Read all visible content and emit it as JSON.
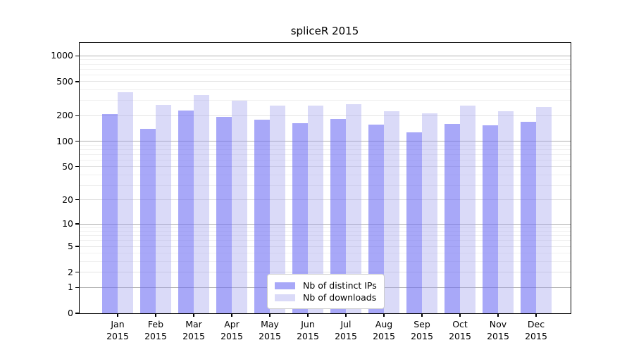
{
  "title": "spliceR 2015",
  "legend": {
    "items": [
      {
        "label": "Nb of distinct IPs"
      },
      {
        "label": "Nb of downloads"
      }
    ]
  },
  "colors": {
    "bar_dark": "rgba(110,110,243,0.6)",
    "bar_light": "rgba(162,162,238,0.4)",
    "grid_decade": "#b0b0b0",
    "grid_labeled": "#e2e2e2",
    "grid_minor": "#f0f0f0",
    "spine": "#000000",
    "text": "#000000",
    "background": "#ffffff"
  },
  "chart_data": {
    "type": "bar",
    "title": "spliceR 2015",
    "categories": [
      "Jan",
      "Feb",
      "Mar",
      "Apr",
      "May",
      "Jun",
      "Jul",
      "Aug",
      "Sep",
      "Oct",
      "Nov",
      "Dec"
    ],
    "x_tick_second_line": "2015",
    "series": [
      {
        "name": "Nb of distinct IPs",
        "color": "rgba(110,110,243,0.6)",
        "values": [
          210,
          141,
          231,
          192,
          180,
          163,
          183,
          158,
          127,
          160,
          154,
          170
        ]
      },
      {
        "name": "Nb of downloads",
        "color": "rgba(162,162,238,0.4)",
        "values": [
          378,
          266,
          350,
          297,
          263,
          262,
          272,
          224,
          214,
          262,
          225,
          250
        ]
      }
    ],
    "xlabel": "",
    "ylabel": "",
    "yscale": "log1p",
    "ylim": [
      0,
      1412
    ],
    "ylim_log_top": 3.15,
    "y_ticks": [
      0,
      1,
      2,
      5,
      10,
      20,
      50,
      100,
      200,
      500,
      1000
    ],
    "y_decade_gridlines": [
      1,
      10,
      100,
      1000
    ],
    "y_minor_gridlines": [
      3,
      4,
      6,
      7,
      8,
      9,
      30,
      40,
      60,
      70,
      80,
      90,
      300,
      400,
      600,
      700,
      800,
      900
    ],
    "grid": true,
    "legend_position": "lower center"
  }
}
